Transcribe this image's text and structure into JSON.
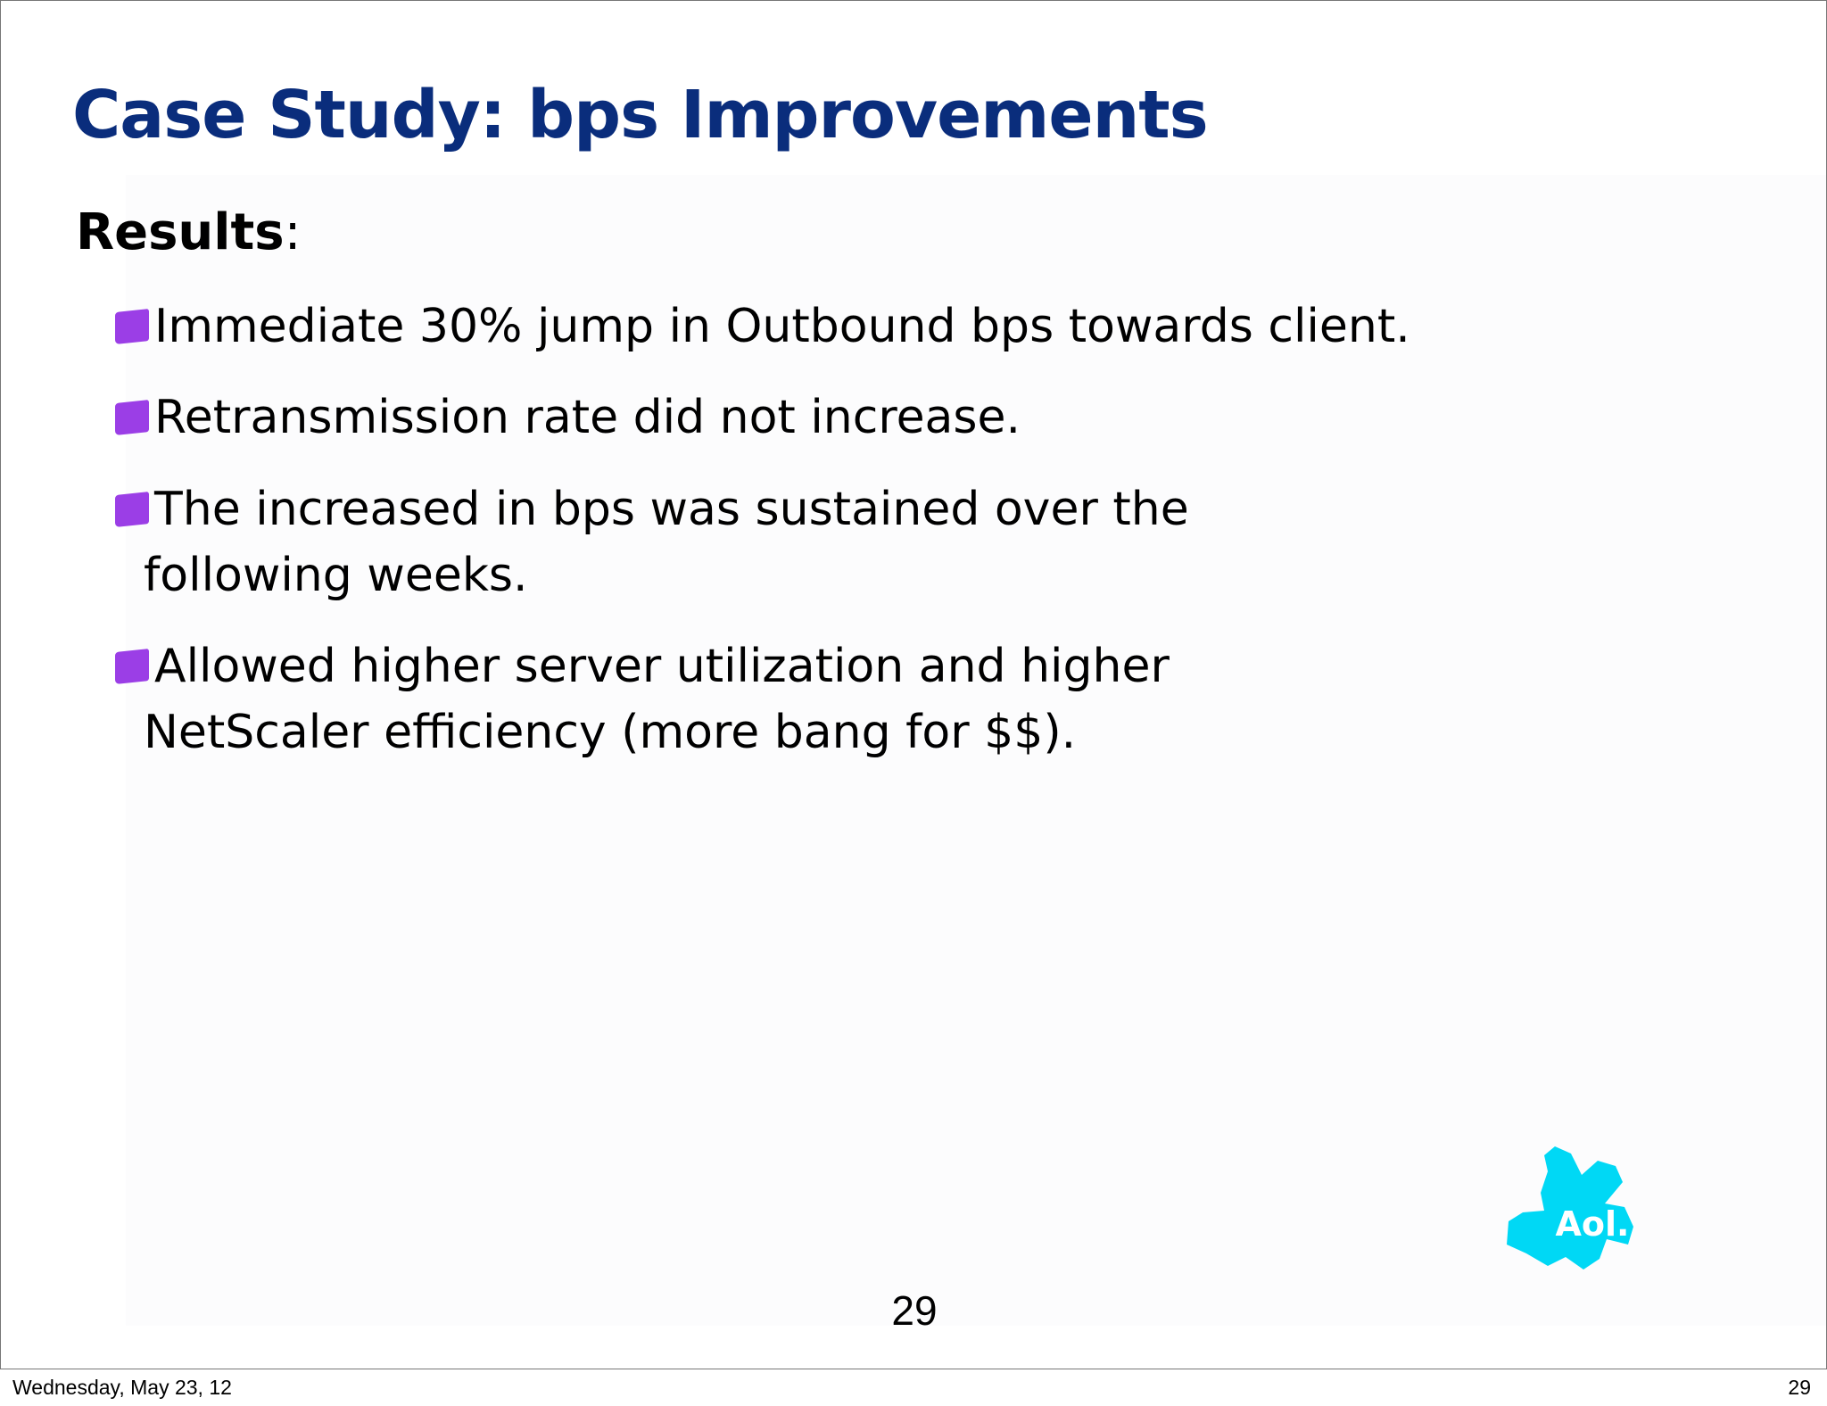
{
  "slide": {
    "title": "Case Study: bps Improvements",
    "results_heading": "Results",
    "results_colon": ":",
    "bullets": [
      {
        "line1": "Immediate 30% jump in Outbound bps towards client.",
        "line2": ""
      },
      {
        "line1": "Retransmission rate did not increase.",
        "line2": ""
      },
      {
        "line1": "The increased in bps was sustained over the",
        "line2": "following weeks."
      },
      {
        "line1": "Allowed higher server utilization and higher",
        "line2": "NetScaler efficiency (more bang for $$)."
      }
    ],
    "page_number": "29",
    "logo_text": "Aol."
  },
  "footer": {
    "date": "Wednesday, May 23, 12",
    "page_number": "29"
  },
  "colors": {
    "title": "#0a2d7c",
    "bullet": "#9b3ee6",
    "logo": "#00d8f5"
  },
  "icons": {
    "bullet": "square-bullet-icon",
    "logo": "aol-logo"
  }
}
